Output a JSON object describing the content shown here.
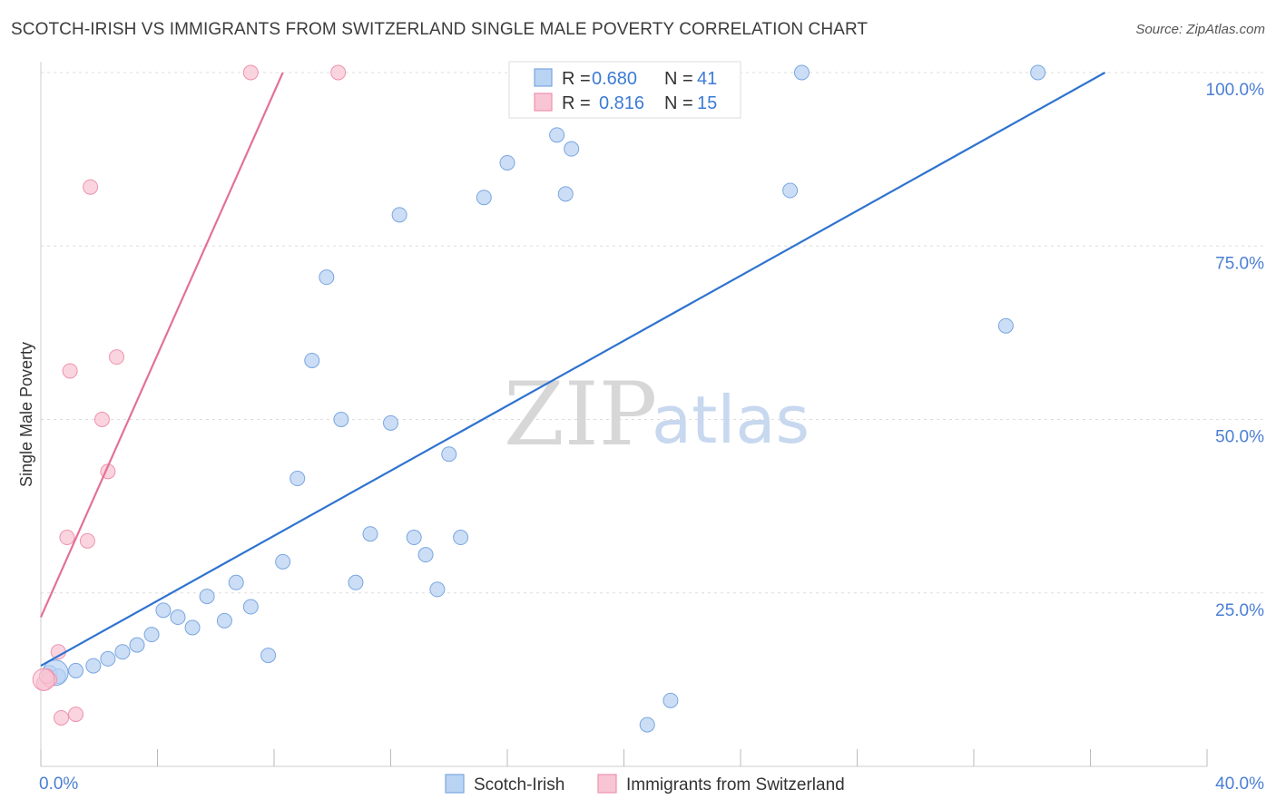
{
  "title": "SCOTCH-IRISH VS IMMIGRANTS FROM SWITZERLAND SINGLE MALE POVERTY CORRELATION CHART",
  "source": "Source: ZipAtlas.com",
  "watermark": {
    "zip": "ZIP",
    "atlas": "atlas"
  },
  "colors": {
    "blue_fill": "#b9d3f3",
    "blue_stroke": "#7aa6e0",
    "blue_line": "#2f73d0",
    "pink_fill": "#f8c5d4",
    "pink_stroke": "#ee93ae",
    "pink_line": "#e4709a",
    "grid": "#dddddd",
    "axis_text": "#4a7fd4"
  },
  "chart_data": {
    "type": "scatter",
    "title": "SCOTCH-IRISH VS IMMIGRANTS FROM SWITZERLAND SINGLE MALE POVERTY CORRELATION CHART",
    "xlabel": "",
    "ylabel": "Single Male Poverty",
    "xlim": [
      0,
      40
    ],
    "ylim": [
      0,
      100
    ],
    "x_tick_labels": [
      "0.0%",
      "40.0%"
    ],
    "y_ticks": [
      25,
      50,
      75,
      100
    ],
    "y_tick_labels": [
      "25.0%",
      "50.0%",
      "75.0%",
      "100.0%"
    ],
    "grid": true,
    "legend_position": "top-center",
    "legend": [
      {
        "name": "Scotch-Irish",
        "r_label": "R =",
        "r_value": "0.680",
        "n_label": "N =",
        "n_value": "41"
      },
      {
        "name": "Immigrants from Switzerland",
        "r_label": "R =",
        "r_value": "0.816",
        "n_label": "N =",
        "n_value": "15"
      }
    ],
    "series": [
      {
        "name": "Scotch-Irish",
        "color": "blue",
        "points": [
          [
            0.3,
            13.5
          ],
          [
            0.6,
            13.0
          ],
          [
            1.2,
            13.8
          ],
          [
            1.8,
            14.5
          ],
          [
            2.3,
            15.5
          ],
          [
            2.8,
            16.5
          ],
          [
            3.3,
            17.5
          ],
          [
            3.8,
            19.0
          ],
          [
            4.2,
            22.5
          ],
          [
            4.7,
            21.5
          ],
          [
            5.2,
            20.0
          ],
          [
            5.7,
            24.5
          ],
          [
            6.3,
            21.0
          ],
          [
            6.7,
            26.5
          ],
          [
            7.2,
            23.0
          ],
          [
            7.8,
            16.0
          ],
          [
            8.3,
            29.5
          ],
          [
            8.8,
            41.5
          ],
          [
            9.3,
            58.5
          ],
          [
            9.8,
            70.5
          ],
          [
            10.3,
            50.0
          ],
          [
            10.8,
            26.5
          ],
          [
            11.3,
            33.5
          ],
          [
            12.0,
            49.5
          ],
          [
            12.3,
            79.5
          ],
          [
            12.8,
            33.0
          ],
          [
            13.2,
            30.5
          ],
          [
            13.6,
            25.5
          ],
          [
            14.0,
            45.0
          ],
          [
            14.4,
            33.0
          ],
          [
            15.2,
            82.0
          ],
          [
            16.0,
            87.0
          ],
          [
            17.7,
            91.0
          ],
          [
            18.2,
            89.0
          ],
          [
            18.0,
            82.5
          ],
          [
            20.8,
            6.0
          ],
          [
            21.6,
            9.5
          ],
          [
            25.7,
            83.0
          ],
          [
            26.1,
            100.0
          ],
          [
            33.1,
            63.5
          ],
          [
            34.2,
            100.0
          ]
        ]
      },
      {
        "name": "Immigrants from Switzerland",
        "color": "pink",
        "points": [
          [
            0.1,
            12.0
          ],
          [
            0.3,
            12.5
          ],
          [
            0.6,
            16.5
          ],
          [
            0.7,
            7.0
          ],
          [
            0.9,
            33.0
          ],
          [
            1.0,
            57.0
          ],
          [
            1.2,
            7.5
          ],
          [
            1.6,
            32.5
          ],
          [
            1.7,
            83.5
          ],
          [
            2.1,
            50.0
          ],
          [
            2.3,
            42.5
          ],
          [
            2.6,
            59.0
          ],
          [
            7.2,
            100.0
          ],
          [
            10.2,
            100.0
          ],
          [
            0.2,
            13.0
          ]
        ]
      }
    ],
    "trend_lines": [
      {
        "series": "Scotch-Irish",
        "x": [
          0.0,
          36.5
        ],
        "y": [
          14.5,
          100.0
        ]
      },
      {
        "series": "Immigrants from Switzerland",
        "x": [
          0.0,
          8.3
        ],
        "y": [
          21.5,
          100.0
        ]
      }
    ]
  }
}
